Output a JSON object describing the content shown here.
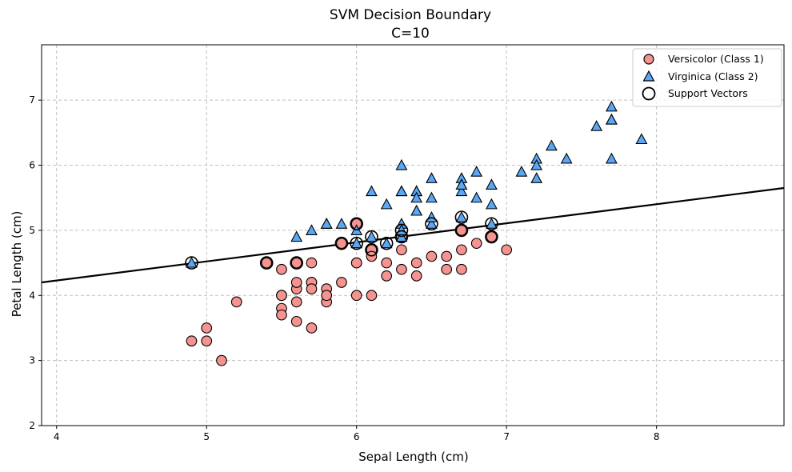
{
  "chart_data": {
    "type": "scatter",
    "title": "SVM Decision Boundary",
    "subtitle": "C=10",
    "xlabel": "Sepal Length (cm)",
    "ylabel": "Petal Length (cm)",
    "xlim": [
      3.9,
      8.85
    ],
    "ylim": [
      2,
      7.85
    ],
    "xticks": [
      4,
      5,
      6,
      7,
      8
    ],
    "yticks": [
      2,
      3,
      4,
      5,
      6,
      7
    ],
    "grid": true,
    "legend_position": "top-right",
    "series": [
      {
        "name": "Versicolor (Class 1)",
        "marker": "circle",
        "color": "#f4938f",
        "points": [
          [
            7.0,
            4.7
          ],
          [
            6.4,
            4.5
          ],
          [
            6.9,
            4.9
          ],
          [
            5.5,
            4.0
          ],
          [
            6.5,
            4.6
          ],
          [
            5.7,
            4.5
          ],
          [
            6.3,
            4.7
          ],
          [
            4.9,
            3.3
          ],
          [
            6.6,
            4.6
          ],
          [
            5.2,
            3.9
          ],
          [
            5.0,
            3.5
          ],
          [
            5.9,
            4.2
          ],
          [
            6.0,
            4.0
          ],
          [
            6.1,
            4.7
          ],
          [
            5.6,
            3.6
          ],
          [
            6.7,
            4.4
          ],
          [
            5.6,
            4.5
          ],
          [
            5.8,
            4.1
          ],
          [
            6.2,
            4.5
          ],
          [
            5.6,
            3.9
          ],
          [
            5.9,
            4.8
          ],
          [
            6.1,
            4.0
          ],
          [
            6.3,
            4.9
          ],
          [
            6.1,
            4.7
          ],
          [
            6.4,
            4.3
          ],
          [
            6.6,
            4.4
          ],
          [
            6.8,
            4.8
          ],
          [
            6.7,
            5.0
          ],
          [
            6.0,
            4.5
          ],
          [
            5.7,
            3.5
          ],
          [
            5.5,
            3.8
          ],
          [
            5.5,
            3.7
          ],
          [
            5.8,
            3.9
          ],
          [
            6.0,
            5.1
          ],
          [
            5.4,
            4.5
          ],
          [
            6.0,
            4.5
          ],
          [
            6.7,
            4.7
          ],
          [
            6.3,
            4.4
          ],
          [
            5.6,
            4.1
          ],
          [
            5.5,
            4.0
          ],
          [
            5.5,
            4.4
          ],
          [
            6.1,
            4.6
          ],
          [
            5.8,
            4.0
          ],
          [
            5.0,
            3.3
          ],
          [
            5.6,
            4.2
          ],
          [
            5.7,
            4.2
          ],
          [
            5.7,
            4.2
          ],
          [
            6.2,
            4.3
          ],
          [
            5.1,
            3.0
          ],
          [
            5.7,
            4.1
          ]
        ]
      },
      {
        "name": "Virginica (Class 2)",
        "marker": "triangle",
        "color": "#5aa7f5",
        "points": [
          [
            6.3,
            6.0
          ],
          [
            5.8,
            5.1
          ],
          [
            7.1,
            5.9
          ],
          [
            6.3,
            5.6
          ],
          [
            6.5,
            5.8
          ],
          [
            7.6,
            6.6
          ],
          [
            4.9,
            4.5
          ],
          [
            7.3,
            6.3
          ],
          [
            6.7,
            5.8
          ],
          [
            7.2,
            6.1
          ],
          [
            6.5,
            5.1
          ],
          [
            6.4,
            5.3
          ],
          [
            6.8,
            5.5
          ],
          [
            5.7,
            5.0
          ],
          [
            5.8,
            5.1
          ],
          [
            6.4,
            5.3
          ],
          [
            6.5,
            5.5
          ],
          [
            7.7,
            6.7
          ],
          [
            7.7,
            6.9
          ],
          [
            6.0,
            5.0
          ],
          [
            6.9,
            5.7
          ],
          [
            5.6,
            4.9
          ],
          [
            7.7,
            6.7
          ],
          [
            6.3,
            4.9
          ],
          [
            6.7,
            5.7
          ],
          [
            7.2,
            6.0
          ],
          [
            6.2,
            4.8
          ],
          [
            6.1,
            4.9
          ],
          [
            6.4,
            5.6
          ],
          [
            7.2,
            5.8
          ],
          [
            7.4,
            6.1
          ],
          [
            7.9,
            6.4
          ],
          [
            6.4,
            5.6
          ],
          [
            6.3,
            5.1
          ],
          [
            6.1,
            5.6
          ],
          [
            7.7,
            6.1
          ],
          [
            6.3,
            5.6
          ],
          [
            6.4,
            5.5
          ],
          [
            6.0,
            4.8
          ],
          [
            6.9,
            5.4
          ],
          [
            6.7,
            5.6
          ],
          [
            6.9,
            5.1
          ],
          [
            5.8,
            5.1
          ],
          [
            6.8,
            5.9
          ],
          [
            6.7,
            5.7
          ],
          [
            6.7,
            5.2
          ],
          [
            6.3,
            5.0
          ],
          [
            6.5,
            5.2
          ],
          [
            6.2,
            5.4
          ],
          [
            5.9,
            5.1
          ]
        ]
      },
      {
        "name": "Support Vectors",
        "marker": "hollow-circle",
        "color": "#000000",
        "points": [
          [
            4.9,
            4.5
          ],
          [
            5.4,
            4.5
          ],
          [
            5.6,
            4.5
          ],
          [
            5.9,
            4.8
          ],
          [
            6.0,
            5.1
          ],
          [
            6.0,
            4.8
          ],
          [
            6.1,
            4.9
          ],
          [
            6.1,
            4.7
          ],
          [
            6.2,
            4.8
          ],
          [
            6.3,
            4.9
          ],
          [
            6.3,
            5.0
          ],
          [
            6.5,
            5.1
          ],
          [
            6.7,
            5.0
          ],
          [
            6.7,
            5.2
          ],
          [
            6.9,
            5.1
          ],
          [
            6.9,
            4.9
          ]
        ]
      }
    ],
    "decision_boundary": {
      "type": "line",
      "color": "#000000",
      "points": [
        [
          3.9,
          4.2
        ],
        [
          8.85,
          5.65
        ]
      ]
    }
  }
}
